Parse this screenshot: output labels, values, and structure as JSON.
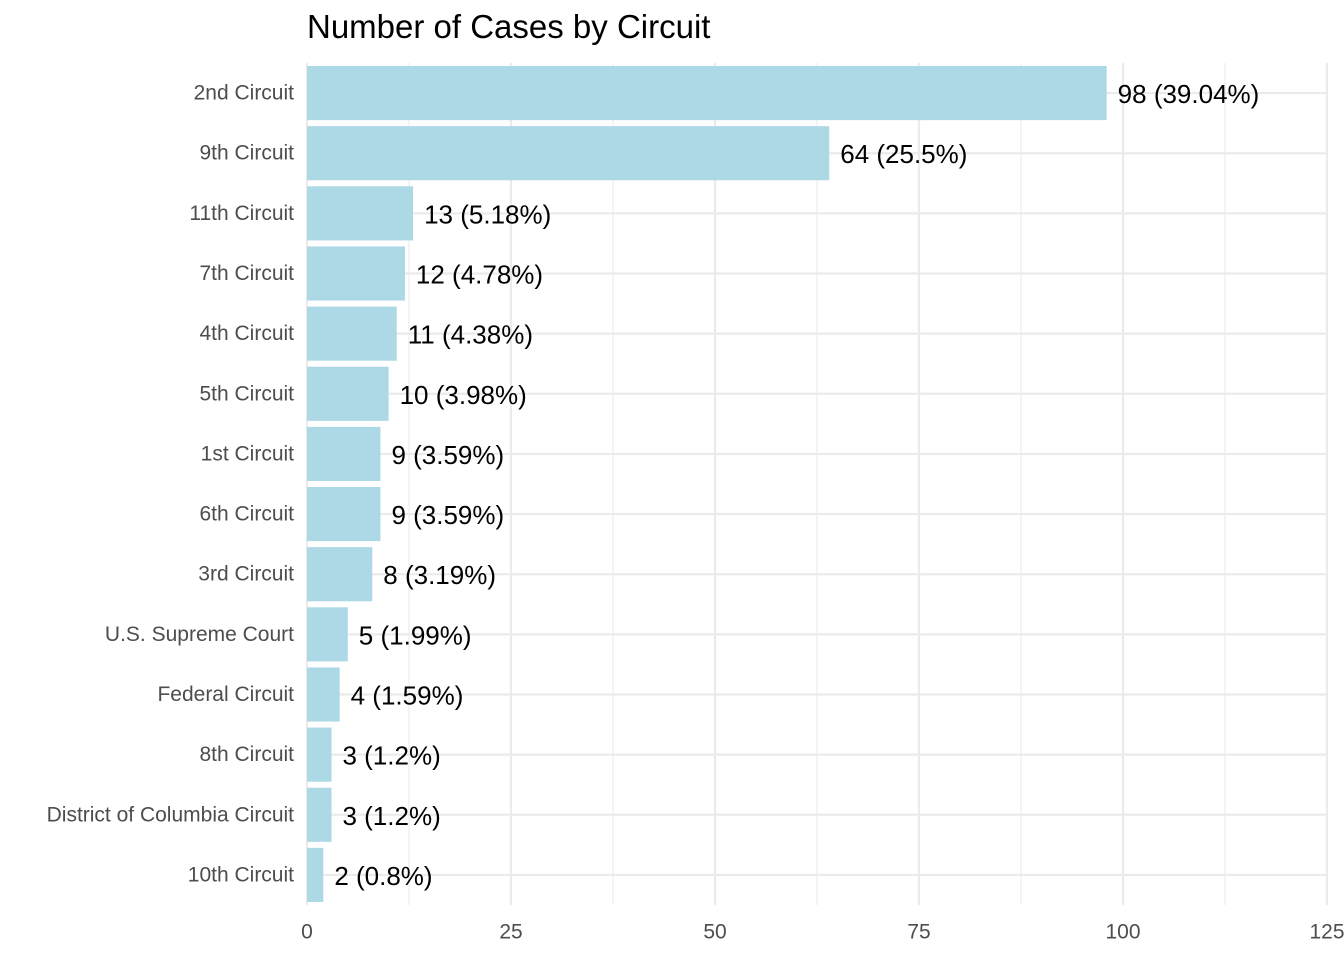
{
  "chart_data": {
    "type": "bar",
    "orientation": "horizontal",
    "title": "Number of Cases by Circuit",
    "xlabel": "",
    "ylabel": "",
    "categories": [
      "2nd Circuit",
      "9th Circuit",
      "11th Circuit",
      "7th Circuit",
      "4th Circuit",
      "5th Circuit",
      "1st Circuit",
      "6th Circuit",
      "3rd Circuit",
      "U.S. Supreme Court",
      "Federal Circuit",
      "8th Circuit",
      "District of Columbia Circuit",
      "10th Circuit"
    ],
    "values": [
      98,
      64,
      13,
      12,
      11,
      10,
      9,
      9,
      8,
      5,
      4,
      3,
      3,
      2
    ],
    "data_labels": [
      "98 (39.04%)",
      "64 (25.5%)",
      "13 (5.18%)",
      "12 (4.78%)",
      "11 (4.38%)",
      "10 (3.98%)",
      "9 (3.59%)",
      "9 (3.59%)",
      "8 (3.19%)",
      "5 (1.99%)",
      "4 (1.59%)",
      "3 (1.2%)",
      "3 (1.2%)",
      "2 (0.8%)"
    ],
    "x_ticks": [
      0,
      25,
      50,
      75,
      100,
      125
    ],
    "xlim": [
      0,
      125
    ],
    "grid": true,
    "bar_color": "#add8e6"
  }
}
